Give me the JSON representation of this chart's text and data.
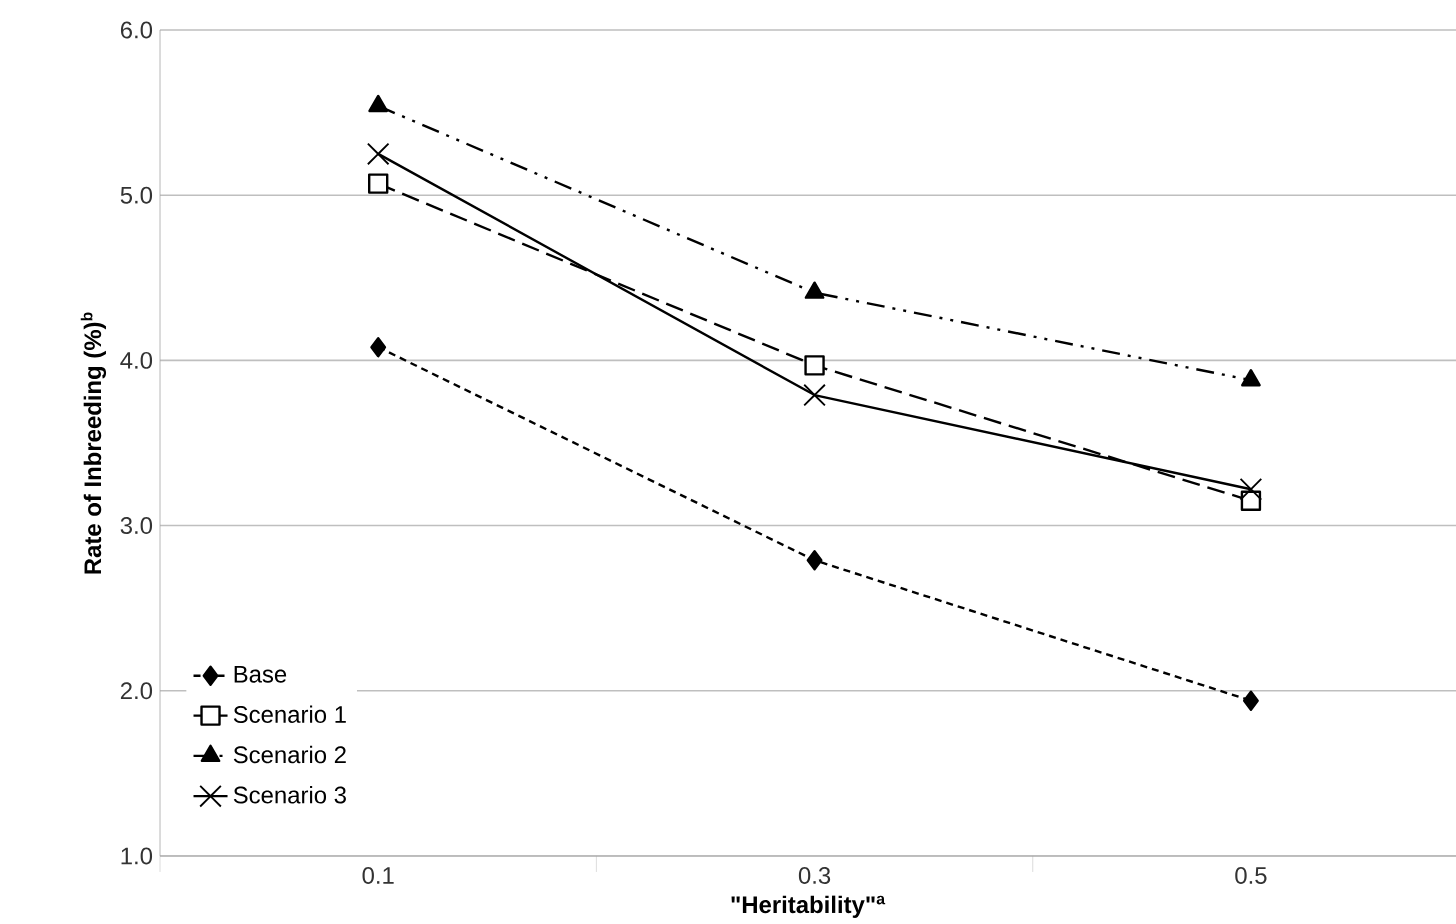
{
  "chart_data": {
    "type": "line",
    "xlabel": "\"Heritability\"$^{a}$",
    "ylabel": "Rate of Inbreeding (%)$^{b}$",
    "categories": [
      "0.1",
      "0.3",
      "0.5"
    ],
    "series": [
      {
        "name": "Base",
        "color": "#000000",
        "marker": "diamond",
        "line_style": "dotted",
        "values": [
          4.08,
          2.79,
          1.94
        ]
      },
      {
        "name": "Scenario 1",
        "color": "#000000",
        "marker": "square",
        "line_style": "dashed",
        "values": [
          5.07,
          3.97,
          3.15
        ]
      },
      {
        "name": "Scenario 2",
        "color": "#000000",
        "marker": "triangle",
        "line_style": "dashdot",
        "values": [
          5.54,
          4.41,
          3.88
        ]
      },
      {
        "name": "Scenario 3",
        "color": "#000000",
        "marker": "cross",
        "line_style": "solid",
        "values": [
          5.25,
          3.79,
          3.22
        ]
      }
    ],
    "ylim": [
      1.0,
      6.0
    ],
    "yticks": [
      {
        "value": 1,
        "label": "1.0"
      },
      {
        "value": 2,
        "label": "2.0"
      },
      {
        "value": 3,
        "label": "3.0"
      },
      {
        "value": 4,
        "label": "4.0"
      },
      {
        "value": 5,
        "label": "5.0"
      },
      {
        "value": 6,
        "label": "6.0"
      }
    ],
    "grid": "y",
    "legend": "bottom left"
  }
}
